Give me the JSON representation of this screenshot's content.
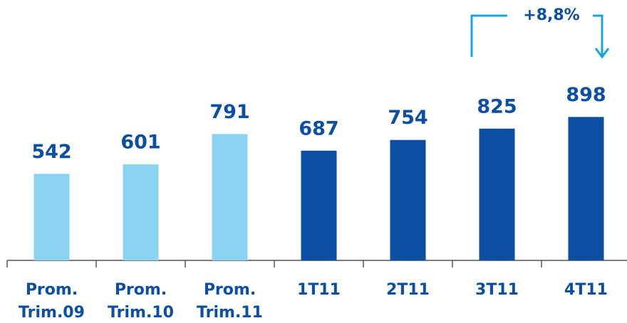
{
  "chart_data": {
    "type": "bar",
    "categories": [
      "Prom. Trim.09",
      "Prom. Trim.10",
      "Prom. Trim.11",
      "1T11",
      "2T11",
      "3T11",
      "4T11"
    ],
    "values": [
      542,
      601,
      791,
      687,
      754,
      825,
      898
    ],
    "colors": [
      "#8bd3f3",
      "#8bd3f3",
      "#8bd3f3",
      "#0b4ea2",
      "#0b4ea2",
      "#0b4ea2",
      "#0b4ea2"
    ],
    "ylim": [
      0,
      1000
    ],
    "annotation": "+8,8%"
  }
}
